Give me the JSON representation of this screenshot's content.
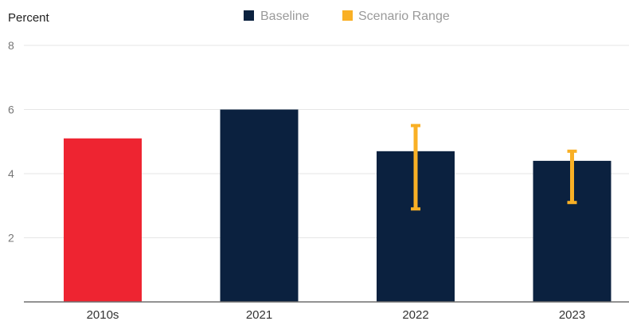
{
  "chart_data": {
    "type": "bar",
    "ylabel": "Percent",
    "categories": [
      "2010s",
      "2021",
      "2022",
      "2023"
    ],
    "values": [
      5.1,
      6.0,
      4.7,
      4.4
    ],
    "bar_colors": [
      "#EE2431",
      "#0B213F",
      "#0B213F",
      "#0B213F"
    ],
    "error_ranges": [
      null,
      null,
      [
        2.9,
        5.5
      ],
      [
        3.1,
        4.7
      ]
    ],
    "ylim": [
      0,
      8
    ],
    "yticks": [
      2,
      4,
      6,
      8
    ],
    "grid": true,
    "legend": {
      "placement": "top-center",
      "items": [
        {
          "label": "Baseline",
          "color": "#0B213F"
        },
        {
          "label": "Scenario Range",
          "color": "#F9B025"
        }
      ]
    }
  }
}
